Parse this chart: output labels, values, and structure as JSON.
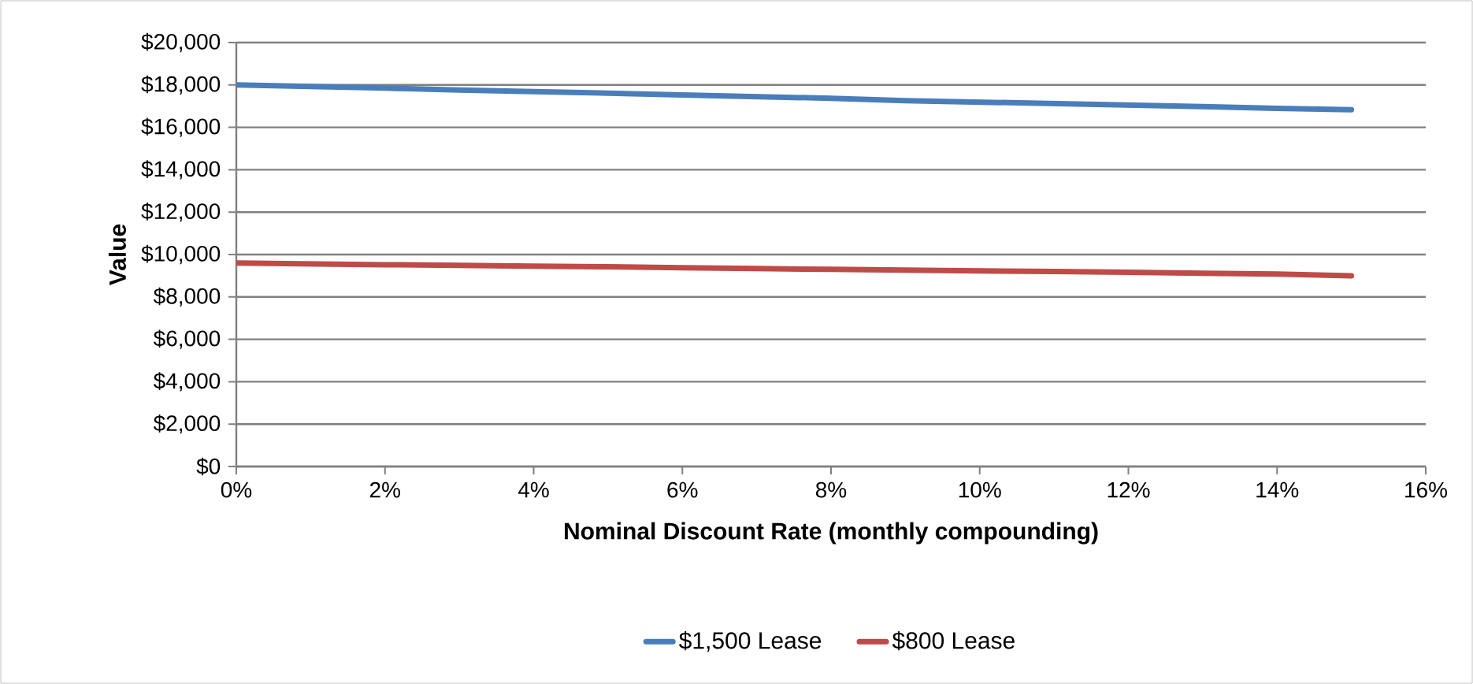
{
  "chart_data": {
    "type": "line",
    "xlabel": "Nominal Discount Rate (monthly compounding)",
    "ylabel": "Value",
    "x": [
      0,
      1,
      2,
      3,
      4,
      5,
      6,
      7,
      8,
      9,
      10,
      11,
      12,
      13,
      14,
      15
    ],
    "series": [
      {
        "name": "$1,500 Lease",
        "color": "#4a7ebb",
        "values": [
          18000,
          17930,
          17850,
          17760,
          17690,
          17610,
          17530,
          17450,
          17370,
          17260,
          17190,
          17120,
          17050,
          16980,
          16900,
          16830
        ]
      },
      {
        "name": "$800 Lease",
        "color": "#be4b48",
        "values": [
          9600,
          9560,
          9520,
          9490,
          9450,
          9420,
          9380,
          9340,
          9300,
          9270,
          9230,
          9200,
          9160,
          9120,
          9080,
          9000
        ]
      }
    ],
    "xlim": [
      0,
      16
    ],
    "xticks": [
      {
        "value": 0,
        "label": "0%"
      },
      {
        "value": 2,
        "label": "2%"
      },
      {
        "value": 4,
        "label": "4%"
      },
      {
        "value": 6,
        "label": "6%"
      },
      {
        "value": 8,
        "label": "8%"
      },
      {
        "value": 10,
        "label": "10%"
      },
      {
        "value": 12,
        "label": "12%"
      },
      {
        "value": 14,
        "label": "14%"
      },
      {
        "value": 16,
        "label": "16%"
      }
    ],
    "ylim": [
      0,
      20000
    ],
    "yticks": [
      {
        "value": 0,
        "label": "$0"
      },
      {
        "value": 2000,
        "label": "$2,000"
      },
      {
        "value": 4000,
        "label": "$4,000"
      },
      {
        "value": 6000,
        "label": "$6,000"
      },
      {
        "value": 8000,
        "label": "$8,000"
      },
      {
        "value": 10000,
        "label": "$10,000"
      },
      {
        "value": 12000,
        "label": "$12,000"
      },
      {
        "value": 14000,
        "label": "$14,000"
      },
      {
        "value": 16000,
        "label": "$16,000"
      },
      {
        "value": 18000,
        "label": "$18,000"
      },
      {
        "value": 20000,
        "label": "$20,000"
      }
    ],
    "grid": "y",
    "legend": "bottom",
    "marker": "none",
    "line_style": "solid"
  }
}
